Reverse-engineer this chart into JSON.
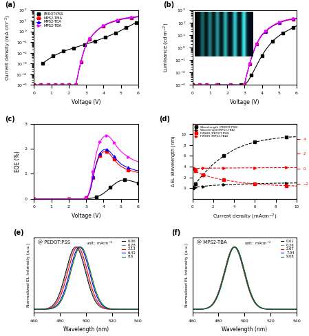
{
  "colors": {
    "PEDOT:PSS": "#000000",
    "MPS2-TMA": "#ff0000",
    "MPS2-TEA": "#0000ff",
    "MPS2-TBA": "#ff00ff"
  },
  "panel_a": {
    "PEDOT_V": [
      0.5,
      0.7,
      0.9,
      1.1,
      1.3,
      1.5,
      1.7,
      1.9,
      2.1,
      2.3,
      2.5,
      2.7,
      2.9,
      3.1,
      3.3,
      3.5,
      3.7,
      3.9,
      4.1,
      4.3,
      4.5,
      4.7,
      4.9,
      5.1,
      5.3,
      5.5,
      5.7,
      5.9
    ],
    "PEDOT_J": [
      0.001,
      0.0018,
      0.003,
      0.005,
      0.007,
      0.01,
      0.014,
      0.018,
      0.023,
      0.029,
      0.037,
      0.047,
      0.06,
      0.075,
      0.095,
      0.12,
      0.16,
      0.21,
      0.28,
      0.38,
      0.52,
      0.72,
      1.0,
      1.5,
      2.2,
      3.2,
      4.8,
      7.0
    ],
    "MPS_flat_V": [
      0.0,
      0.1,
      0.2,
      0.3,
      0.4,
      0.5,
      0.6,
      0.7,
      0.8,
      0.9,
      1.0,
      1.1,
      1.2,
      1.3,
      1.4,
      1.5,
      1.6,
      1.7,
      1.8,
      1.9,
      2.0,
      2.1,
      2.2,
      2.3,
      2.4
    ],
    "MPS_flat_J": [
      1e-05,
      1e-05,
      1e-05,
      1e-05,
      1e-05,
      1e-05,
      1e-05,
      1e-05,
      1e-05,
      1e-05,
      1e-05,
      1e-05,
      1e-05,
      1e-05,
      1e-05,
      1e-05,
      1e-05,
      1e-05,
      1e-05,
      1e-05,
      1e-05,
      1e-05,
      1e-05,
      1e-05,
      1e-05
    ],
    "MPS_rise_V": [
      2.4,
      2.5,
      2.6,
      2.7,
      2.8,
      2.9,
      3.0,
      3.2,
      3.4,
      3.6,
      3.8,
      4.0,
      4.2,
      4.4,
      4.6,
      4.8,
      5.0,
      5.2,
      5.4,
      5.6,
      5.8,
      6.0
    ],
    "TMA_rise_J": [
      1e-05,
      5e-05,
      0.0003,
      0.0015,
      0.006,
      0.02,
      0.06,
      0.2,
      0.5,
      1.1,
      2.0,
      3.2,
      4.8,
      6.5,
      8.5,
      10.5,
      13,
      15,
      17,
      19,
      21,
      23
    ],
    "TEA_rise_J": [
      1e-05,
      5e-05,
      0.0003,
      0.0015,
      0.006,
      0.02,
      0.06,
      0.21,
      0.52,
      1.15,
      2.1,
      3.4,
      5.1,
      6.9,
      9.0,
      11,
      14,
      16,
      18,
      20,
      22,
      24
    ],
    "TBA_rise_J": [
      1e-05,
      5e-05,
      0.0003,
      0.0015,
      0.006,
      0.02,
      0.06,
      0.22,
      0.54,
      1.2,
      2.2,
      3.6,
      5.4,
      7.3,
      9.5,
      12,
      15,
      17,
      20,
      22,
      24,
      26
    ]
  },
  "panel_b": {
    "PEDOT_V": [
      0.0,
      0.5,
      1.0,
      1.5,
      2.0,
      2.5,
      2.8,
      3.0,
      3.2,
      3.4,
      3.6,
      3.8,
      4.0,
      4.2,
      4.4,
      4.6,
      4.8,
      5.0,
      5.2,
      5.4,
      5.6,
      5.8,
      6.0
    ],
    "PEDOT_L": [
      0.001,
      0.001,
      0.001,
      0.001,
      0.001,
      0.001,
      0.001,
      0.001,
      0.002,
      0.006,
      0.02,
      0.07,
      0.22,
      0.6,
      1.4,
      3.0,
      5.5,
      9.0,
      14,
      20,
      28,
      40,
      55
    ],
    "MPS_flat_V": [
      0.0,
      0.1,
      0.2,
      0.3,
      0.4,
      0.5,
      0.6,
      0.7,
      0.8,
      0.9,
      1.0,
      1.2,
      1.4,
      1.6,
      1.8,
      2.0,
      2.2,
      2.4,
      2.6,
      2.8,
      3.0
    ],
    "MPS_flat_L": [
      0.001,
      0.001,
      0.001,
      0.001,
      0.001,
      0.001,
      0.001,
      0.001,
      0.001,
      0.001,
      0.001,
      0.001,
      0.001,
      0.001,
      0.001,
      0.001,
      0.001,
      0.001,
      0.001,
      0.001,
      0.001
    ],
    "MPS_rise_V": [
      3.0,
      3.1,
      3.2,
      3.3,
      3.4,
      3.5,
      3.6,
      3.7,
      3.8,
      3.9,
      4.0,
      4.2,
      4.4,
      4.6,
      4.8,
      5.0,
      5.2,
      5.4,
      5.6,
      5.8,
      6.0
    ],
    "TMA_rise_L": [
      0.001,
      0.005,
      0.015,
      0.05,
      0.14,
      0.38,
      0.9,
      1.8,
      3.5,
      6.0,
      9.5,
      18,
      32,
      50,
      70,
      95,
      120,
      145,
      165,
      185,
      200
    ],
    "TEA_rise_L": [
      0.001,
      0.005,
      0.016,
      0.052,
      0.15,
      0.4,
      0.95,
      1.9,
      3.7,
      6.3,
      10,
      19,
      34,
      53,
      75,
      100,
      128,
      155,
      176,
      196,
      212
    ],
    "TBA_rise_L": [
      0.001,
      0.005,
      0.017,
      0.055,
      0.16,
      0.43,
      1.0,
      2.0,
      3.9,
      6.7,
      11,
      20,
      36,
      56,
      80,
      108,
      135,
      163,
      185,
      207,
      225
    ]
  },
  "panel_c": {
    "PEDOT_V": [
      3.2,
      3.4,
      3.6,
      3.8,
      4.0,
      4.2,
      4.4,
      4.6,
      4.8,
      5.0,
      5.2,
      5.4,
      5.6,
      5.8,
      6.0
    ],
    "PEDOT_EQE": [
      0.01,
      0.03,
      0.07,
      0.13,
      0.21,
      0.32,
      0.45,
      0.57,
      0.67,
      0.73,
      0.75,
      0.74,
      0.71,
      0.67,
      0.62
    ],
    "MPS_V": [
      2.9,
      3.0,
      3.1,
      3.2,
      3.3,
      3.4,
      3.5,
      3.6,
      3.7,
      3.8,
      3.9,
      4.0,
      4.1,
      4.2,
      4.3,
      4.4,
      4.5,
      4.6,
      4.8,
      5.0,
      5.2,
      5.4,
      5.6,
      5.8,
      6.0
    ],
    "TMA_EQE": [
      0.01,
      0.04,
      0.1,
      0.25,
      0.5,
      0.85,
      1.15,
      1.4,
      1.6,
      1.73,
      1.82,
      1.88,
      1.9,
      1.88,
      1.83,
      1.76,
      1.67,
      1.58,
      1.42,
      1.3,
      1.22,
      1.16,
      1.12,
      1.08,
      1.05
    ],
    "TEA_EQE": [
      0.01,
      0.045,
      0.11,
      0.27,
      0.53,
      0.88,
      1.19,
      1.45,
      1.66,
      1.8,
      1.9,
      1.96,
      1.98,
      1.97,
      1.93,
      1.86,
      1.78,
      1.69,
      1.53,
      1.4,
      1.31,
      1.25,
      1.2,
      1.15,
      1.12
    ],
    "TBA_EQE": [
      0.01,
      0.05,
      0.13,
      0.32,
      0.65,
      1.1,
      1.5,
      1.85,
      2.1,
      2.28,
      2.4,
      2.48,
      2.52,
      2.53,
      2.5,
      2.44,
      2.35,
      2.25,
      2.06,
      1.9,
      1.78,
      1.68,
      1.6,
      1.53,
      1.48
    ]
  },
  "panel_d": {
    "J_vals": [
      0.05,
      0.1,
      0.2,
      0.3,
      0.5,
      0.7,
      1.0,
      1.5,
      2.0,
      3.0,
      4.0,
      5.0,
      6.0,
      7.0,
      8.0,
      9.0,
      10.0
    ],
    "dWL_PEDOT": [
      0.0,
      0.2,
      0.5,
      0.8,
      1.3,
      1.8,
      2.5,
      3.5,
      4.5,
      6.0,
      7.2,
      8.0,
      8.6,
      9.0,
      9.3,
      9.5,
      9.6
    ],
    "dWL_TBA": [
      0.0,
      0.05,
      0.1,
      0.15,
      0.2,
      0.25,
      0.3,
      0.4,
      0.5,
      0.6,
      0.7,
      0.75,
      0.8,
      0.85,
      0.9,
      0.92,
      0.95
    ],
    "dFWHM_PEDOT": [
      0.0,
      -0.1,
      -0.2,
      -0.3,
      -0.5,
      -0.6,
      -0.8,
      -1.0,
      -1.2,
      -1.5,
      -1.7,
      -1.9,
      -2.0,
      -2.1,
      -2.2,
      -2.25,
      -2.3
    ],
    "dFWHM_TBA": [
      0.0,
      0.02,
      0.03,
      0.04,
      0.05,
      0.06,
      0.07,
      0.08,
      0.09,
      0.1,
      0.11,
      0.12,
      0.13,
      0.14,
      0.14,
      0.15,
      0.15
    ]
  },
  "panel_e": {
    "subtitle": "@ PEDOT:PSS",
    "currents": [
      0.06,
      0.28,
      2.13,
      6.41,
      8.6
    ],
    "colors": [
      "#000000",
      "#888888",
      "#ff0000",
      "#0000ff",
      "#008000"
    ],
    "peak_shifts": [
      0.0,
      0.5,
      1.5,
      3.0,
      3.8
    ],
    "peak_nm": 492,
    "sigma_nm": 7.5
  },
  "panel_f": {
    "subtitle": "@ MPS2-TBA",
    "currents": [
      0.01,
      0.26,
      2.67,
      7.04,
      9.08
    ],
    "colors": [
      "#000000",
      "#888888",
      "#ff0000",
      "#0000ff",
      "#008000"
    ],
    "peak_shifts": [
      0.0,
      0.1,
      0.3,
      0.5,
      0.6
    ],
    "peak_nm": 492,
    "sigma_nm": 7.5
  }
}
